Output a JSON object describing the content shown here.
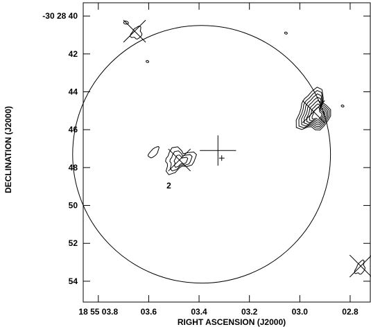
{
  "chart_data": {
    "type": "contour",
    "xlabel": "RIGHT ASCENSION (J2000)",
    "ylabel": "DECLINATION (J2000)",
    "x_ticks": [
      {
        "ra_s": 3.8,
        "label": "18 55 03.8"
      },
      {
        "ra_s": 3.6,
        "label": "03.6"
      },
      {
        "ra_s": 3.4,
        "label": "03.4"
      },
      {
        "ra_s": 3.2,
        "label": "03.2"
      },
      {
        "ra_s": 3.0,
        "label": "03.0"
      },
      {
        "ra_s": 2.8,
        "label": "02.8"
      }
    ],
    "y_ticks": [
      {
        "dec_arcsec": 40,
        "label": "-30 28 40"
      },
      {
        "dec_arcsec": 42,
        "label": "42"
      },
      {
        "dec_arcsec": 44,
        "label": "44"
      },
      {
        "dec_arcsec": 46,
        "label": "46"
      },
      {
        "dec_arcsec": 48,
        "label": "48"
      },
      {
        "dec_arcsec": 50,
        "label": "50"
      },
      {
        "dec_arcsec": 52,
        "label": "52"
      },
      {
        "dec_arcsec": 54,
        "label": "54"
      }
    ],
    "xlim_ra_s": [
      3.86,
      2.72
    ],
    "ylim_dec_arcsec": [
      39.3,
      55.1
    ],
    "primary_beam_circle": {
      "center_ra_s": 3.39,
      "center_dec_arcsec": 47.3,
      "radius_arcsec": 6.8
    },
    "pointing_center_cross": {
      "ra_s": 3.325,
      "dec_arcsec": 47.1,
      "arm_ra_s": 0.072,
      "arm_dec_arcsec": 0.8
    },
    "small_cross": {
      "ra_s": 3.31,
      "dec_arcsec": 47.5
    },
    "source_markers": [
      {
        "ra_s": 3.656,
        "dec_arcsec": 40.8
      },
      {
        "ra_s": 3.478,
        "dec_arcsec": 47.6
      },
      {
        "ra_s": 2.945,
        "dec_arcsec": 45.05
      },
      {
        "ra_s": 2.758,
        "dec_arcsec": 53.2
      }
    ],
    "annotations": [
      {
        "text": "2",
        "ra_s": 3.52,
        "dec_arcsec": 48.95
      }
    ],
    "contour_sources": [
      {
        "ra_s": 2.945,
        "dec_arcsec": 45.05,
        "levels": 7
      },
      {
        "ra_s": 3.48,
        "dec_arcsec": 47.6,
        "levels": 3
      },
      {
        "ra_s": 3.58,
        "dec_arcsec": 47.2,
        "levels": 1
      },
      {
        "ra_s": 3.648,
        "dec_arcsec": 40.9,
        "levels": 1
      },
      {
        "ra_s": 2.76,
        "dec_arcsec": 53.3,
        "levels": 1
      },
      {
        "ra_s": 3.69,
        "dec_arcsec": 40.35,
        "levels": 1
      },
      {
        "ra_s": 3.055,
        "dec_arcsec": 40.9,
        "levels": 1
      },
      {
        "ra_s": 3.605,
        "dec_arcsec": 42.4,
        "levels": 1
      },
      {
        "ra_s": 2.83,
        "dec_arcsec": 44.75,
        "levels": 1
      }
    ]
  }
}
